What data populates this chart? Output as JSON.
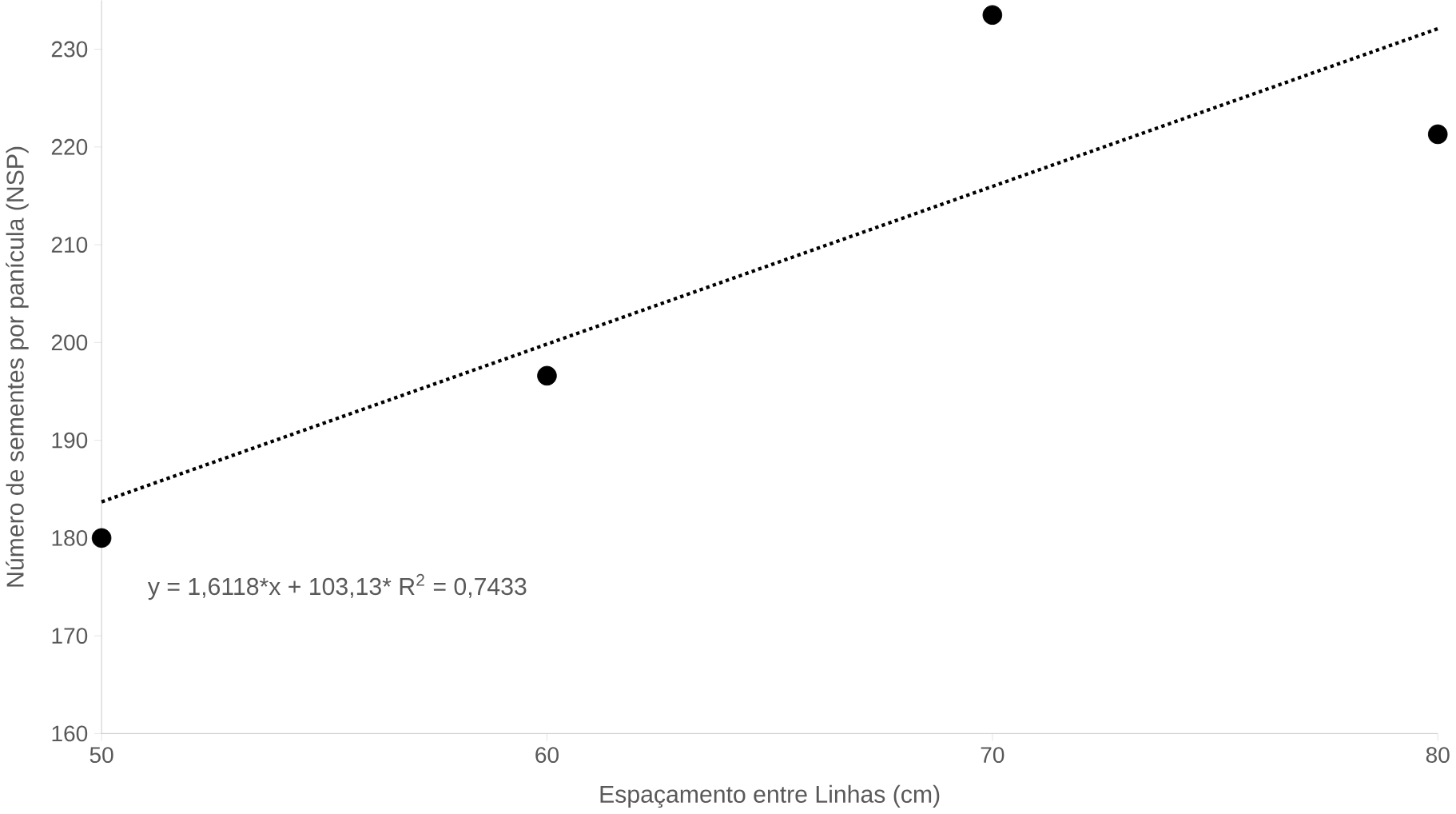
{
  "chart_data": {
    "type": "scatter",
    "xlabel": "Espaçamento entre Linhas (cm)",
    "ylabel": "Número de sementes por panícula (NSP)",
    "annotations": [
      "y = 1,6118*x + 103,13* R$^{2}$ = 0,7433"
    ],
    "series": [
      {
        "color": "#000000",
        "marker": "circle",
        "x": [
          50,
          60,
          70,
          80
        ],
        "values": [
          180,
          196.6,
          233.5,
          221.3
        ]
      },
      {
        "type": "line",
        "color": "#000000",
        "line_style": "dotted",
        "marker": "none",
        "x": [
          50,
          80
        ],
        "values": [
          183.7,
          232.1
        ]
      }
    ],
    "xlim": [
      50,
      80
    ],
    "ylim": [
      160,
      235
    ],
    "xticks": [
      50,
      60,
      70,
      80
    ],
    "yticks": [
      160,
      170,
      180,
      190,
      200,
      210,
      220,
      230
    ],
    "grid": false
  }
}
